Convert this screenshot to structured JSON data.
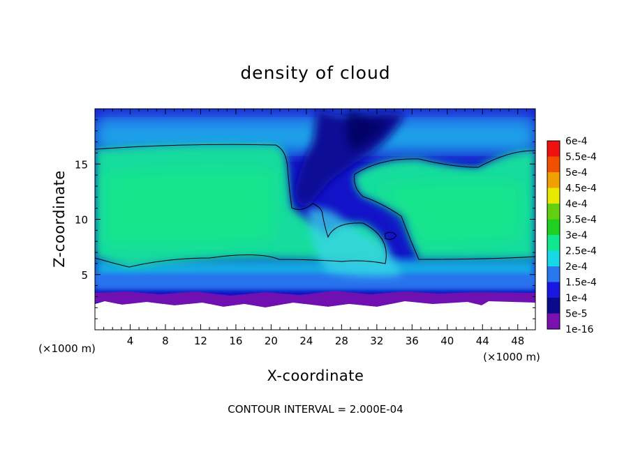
{
  "chart_data": {
    "type": "heatmap",
    "title": "density of cloud",
    "xlabel": "X-coordinate",
    "ylabel": "Z-coordinate",
    "x_unit": "(×1000 m)",
    "y_unit": "(×1000 m)",
    "xlim": [
      0,
      50
    ],
    "ylim": [
      0,
      20
    ],
    "x_ticks": [
      4,
      8,
      12,
      16,
      20,
      24,
      28,
      32,
      36,
      40,
      44,
      48
    ],
    "y_ticks": [
      5,
      10,
      15
    ],
    "colorbar": {
      "levels": [
        "1e-16",
        "5e-5",
        "1e-4",
        "1.5e-4",
        "2e-4",
        "2.5e-4",
        "3e-4",
        "3.5e-4",
        "4e-4",
        "4.5e-4",
        "5e-4",
        "5.5e-4",
        "6e-4"
      ],
      "colors": [
        "#7a10b0",
        "#0a0a8c",
        "#1818e0",
        "#2a78f0",
        "#18d8e8",
        "#10e890",
        "#20d020",
        "#60d010",
        "#e8e800",
        "#f0a000",
        "#f05000",
        "#f01010",
        "#f08080"
      ]
    },
    "contour_level": "2e-4",
    "note": "CONTOUR INTERVAL = 2.000E-04"
  }
}
